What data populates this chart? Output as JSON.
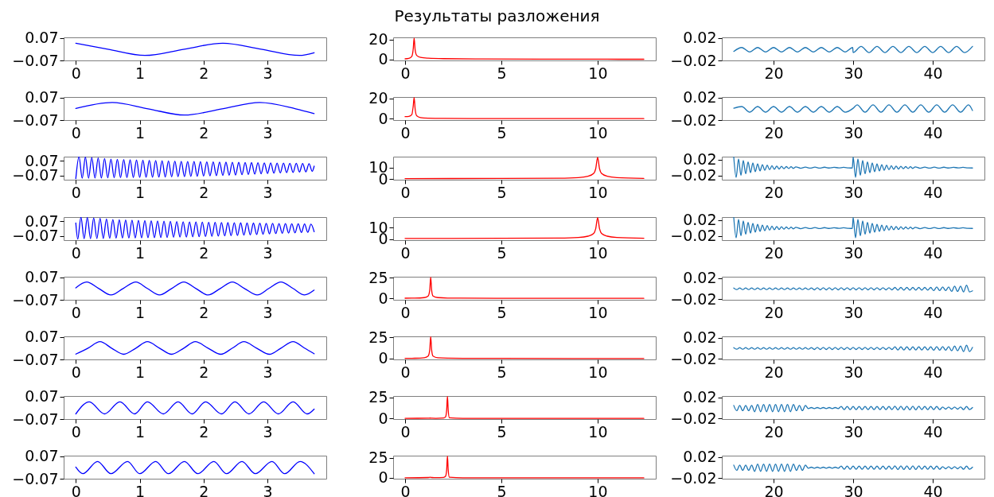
{
  "chart_data": [
    {
      "type": "line",
      "x": [
        0,
        0.5,
        1.08,
        1.7,
        2.3,
        2.9,
        3.5,
        3.73
      ],
      "series": [
        {
          "color": "#0000ff",
          "values": [
            0.037,
            0,
            -0.039,
            0,
            0.037,
            0,
            -0.039,
            -0.022
          ]
        }
      ],
      "xlim": [
        -0.19,
        3.92
      ],
      "ylim": [
        -0.07,
        0.073
      ],
      "xticks": [
        0,
        1,
        2,
        3
      ],
      "yticks": [
        -0.07,
        0.07
      ]
    },
    {
      "type": "line",
      "title": "Результаты разложения",
      "x": [
        0,
        0.2,
        0.35,
        0.42,
        0.47,
        0.52,
        0.6,
        0.8,
        1.2,
        2,
        4,
        8,
        12.4
      ],
      "series": [
        {
          "color": "#ff0000",
          "values": [
            0.5,
            1,
            3,
            10,
            21.4,
            10,
            4,
            2,
            1.2,
            0.7,
            0.4,
            0.2,
            0.1
          ]
        }
      ],
      "xlim": [
        -0.62,
        13.02
      ],
      "ylim": [
        -1.1,
        22.2
      ],
      "xticks": [
        0,
        5,
        10
      ],
      "yticks": [
        0,
        20
      ]
    },
    {
      "type": "line",
      "x": [
        15,
        16,
        17,
        18,
        19,
        20,
        21,
        22,
        23,
        24,
        25,
        26,
        27,
        28,
        29,
        29.95,
        30,
        31,
        32,
        33,
        34,
        35,
        36,
        37,
        38,
        39,
        40,
        41,
        42,
        43,
        44,
        45
      ],
      "series": [
        {
          "color": "#1f77b4",
          "values": [
            -0.004,
            0.003,
            -0.005,
            0.003,
            -0.005,
            0.003,
            -0.005,
            0.003,
            -0.005,
            0.003,
            -0.005,
            0.003,
            -0.005,
            0.003,
            -0.005,
            0.003,
            -0.006,
            0.005,
            -0.006,
            0.005,
            -0.006,
            0.005,
            -0.006,
            0.005,
            -0.006,
            0.005,
            -0.006,
            0.005,
            -0.006,
            0.005,
            -0.006,
            0.005
          ]
        }
      ],
      "xlim": [
        13.5,
        46.5
      ],
      "ylim": [
        -0.02,
        0.021
      ],
      "xticks": [
        20,
        30,
        40
      ],
      "yticks": [
        -0.02,
        0.02
      ]
    },
    {
      "type": "line",
      "x": [
        0,
        0.57,
        1.13,
        1.7,
        2.29,
        2.88,
        3.44,
        3.73
      ],
      "series": [
        {
          "color": "#0000ff",
          "values": [
            0.002,
            0.039,
            0,
            -0.039,
            0,
            0.039,
            0,
            -0.03
          ]
        }
      ],
      "xlim": [
        -0.19,
        3.92
      ],
      "ylim": [
        -0.07,
        0.073
      ],
      "xticks": [
        0,
        1,
        2,
        3
      ],
      "yticks": [
        -0.07,
        0.07
      ]
    },
    {
      "type": "line",
      "x": [
        0,
        0.2,
        0.35,
        0.42,
        0.47,
        0.52,
        0.6,
        0.8,
        1.2,
        2,
        4,
        8,
        12.4
      ],
      "series": [
        {
          "color": "#ff0000",
          "values": [
            2.1,
            2.3,
            4,
            12,
            20.8,
            10,
            3,
            1.2,
            0.6,
            0.3,
            0.2,
            0.1,
            0.1
          ]
        }
      ],
      "xlim": [
        -0.62,
        13.02
      ],
      "ylim": [
        -1.3,
        21.3
      ],
      "xticks": [
        0,
        5,
        10
      ],
      "yticks": [
        0,
        20
      ]
    },
    {
      "type": "line",
      "x": [
        15,
        16,
        17,
        18,
        19,
        20,
        21,
        22,
        23,
        24,
        25,
        26,
        27,
        28,
        29,
        30,
        30.5,
        31.5,
        32.5,
        33.5,
        34.5,
        35.5,
        36.5,
        37.5,
        38.5,
        39.5,
        40.5,
        41.5,
        42.5,
        43.5,
        44.5,
        45
      ],
      "series": [
        {
          "color": "#1f77b4",
          "values": [
            0.001,
            0.004,
            -0.006,
            0.004,
            -0.006,
            0.004,
            -0.006,
            0.004,
            -0.006,
            0.004,
            -0.006,
            0.004,
            -0.006,
            0.004,
            -0.006,
            0.001,
            0.007,
            -0.006,
            0.007,
            -0.006,
            0.007,
            -0.006,
            0.007,
            -0.006,
            0.007,
            -0.006,
            0.007,
            -0.006,
            0.007,
            -0.006,
            0.007,
            -0.003
          ]
        }
      ],
      "xlim": [
        13.5,
        46.5
      ],
      "ylim": [
        -0.02,
        0.021
      ],
      "xticks": [
        20,
        30,
        40
      ],
      "yticks": [
        -0.02,
        0.02
      ]
    },
    {
      "type": "line",
      "x": [
        0,
        0.05,
        0.1,
        0.15,
        0.2,
        0.25,
        0.3,
        0.35,
        0.4,
        0.45,
        0.5,
        0.55,
        0.6,
        0.65,
        0.7,
        0.75,
        0.8,
        0.85,
        0.9,
        0.95,
        1,
        1.05,
        1.1,
        1.15,
        1.2,
        1.25,
        1.3,
        1.35,
        1.4,
        1.45,
        1.5,
        1.55,
        1.6,
        1.65,
        1.7,
        1.75,
        1.8,
        1.85,
        1.9,
        1.95,
        2,
        2.05,
        2.1,
        2.15,
        2.2,
        2.25,
        2.3,
        2.35,
        2.4,
        2.45,
        2.5,
        2.55,
        2.6,
        2.65,
        2.7,
        2.75,
        2.8,
        2.85,
        2.9,
        2.95,
        3,
        3.05,
        3.1,
        3.15,
        3.2,
        3.25,
        3.3,
        3.35,
        3.4,
        3.45,
        3.5,
        3.55,
        3.6,
        3.65,
        3.7,
        3.73
      ],
      "series": [
        {
          "color": "#0000ff",
          "values": [
            -0.1,
            0.11,
            -0.096,
            0.106,
            -0.095,
            0.102,
            -0.094,
            0.098,
            -0.093,
            0.092,
            -0.092,
            0.087,
            -0.091,
            0.085,
            -0.09,
            0.083,
            -0.09,
            0.081,
            -0.089,
            0.079,
            -0.088,
            0.077,
            -0.087,
            0.075,
            -0.086,
            0.073,
            -0.085,
            0.071,
            -0.084,
            0.069,
            -0.082,
            0.067,
            -0.081,
            0.066,
            -0.08,
            0.064,
            -0.078,
            0.063,
            -0.077,
            0.061,
            -0.075,
            0.06,
            -0.073,
            0.059,
            -0.071,
            0.058,
            -0.069,
            0.057,
            -0.067,
            0.056,
            -0.065,
            0.055,
            -0.062,
            0.054,
            -0.059,
            0.053,
            -0.056,
            0.052,
            -0.053,
            0.051,
            -0.05,
            0.05,
            -0.047,
            0.049,
            -0.045,
            0.048,
            -0.042,
            0.047,
            -0.04,
            0.046,
            -0.037,
            0.045,
            -0.035,
            0.043,
            -0.03,
            0.019
          ]
        }
      ],
      "xlim": [
        -0.19,
        3.92
      ],
      "ylim": [
        -0.11,
        0.11
      ],
      "xticks": [
        0,
        1,
        2,
        3
      ],
      "yticks": [
        -0.07,
        0.07
      ]
    },
    {
      "type": "line",
      "x": [
        0,
        5,
        8,
        9,
        9.5,
        9.8,
        9.9,
        10,
        10.1,
        10.2,
        10.5,
        11,
        12.4
      ],
      "series": [
        {
          "color": "#ff0000",
          "values": [
            0.5,
            0.6,
            0.8,
            1.3,
            2.5,
            5,
            9,
            18.8,
            9,
            5,
            2.5,
            1.3,
            0.6
          ]
        }
      ],
      "xlim": [
        -0.62,
        13.02
      ],
      "ylim": [
        -0.5,
        19.5
      ],
      "xticks": [
        0,
        5,
        10
      ],
      "yticks": [
        0,
        10
      ]
    },
    {
      "type": "line",
      "x": [
        15,
        15.3,
        15.6,
        15.9,
        16.2,
        16.5,
        16.8,
        17.1,
        17.4,
        17.7,
        18,
        18.3,
        18.6,
        18.9,
        19.2,
        19.5,
        19.8,
        20.1,
        20.4,
        20.7,
        21,
        21.3,
        21.6,
        21.9,
        22.2,
        22.5,
        22.8,
        23.4,
        24,
        24.6,
        25.2,
        25.8,
        26.4,
        27,
        27.6,
        28.2,
        28.8,
        29.4,
        29.9,
        30,
        30.3,
        30.6,
        30.9,
        31.2,
        31.5,
        31.8,
        32.1,
        32.4,
        32.7,
        33,
        33.3,
        33.6,
        33.9,
        34.2,
        34.5,
        34.8,
        35.1,
        35.4,
        35.7,
        36,
        36.3,
        36.6,
        36.9,
        37.2,
        37.5,
        37.8,
        38.4,
        39,
        39.6,
        40.2,
        40.8,
        41.4,
        42,
        42.6,
        43.2,
        43.8,
        44.4,
        45
      ],
      "series": [
        {
          "color": "#1f77b4",
          "values": [
            0.027,
            -0.025,
            0.022,
            -0.02,
            0.018,
            -0.016,
            0.0145,
            -0.013,
            0.0118,
            -0.0106,
            0.0095,
            -0.0085,
            0.0076,
            -0.0068,
            0.0061,
            -0.0055,
            0.0049,
            -0.0044,
            0.004,
            -0.0036,
            0.0032,
            -0.0029,
            0.0026,
            -0.0024,
            0.0022,
            -0.002,
            0.0018,
            -0.0016,
            0.0014,
            -0.0014,
            0.0012,
            -0.0012,
            0.001,
            -0.001,
            0.0008,
            -0.0008,
            0.0006,
            -0.0006,
            -0.001,
            0.027,
            -0.025,
            0.022,
            -0.02,
            0.018,
            -0.016,
            0.0145,
            -0.013,
            0.0118,
            -0.0106,
            0.0095,
            -0.0085,
            0.0076,
            -0.0068,
            0.0061,
            -0.0055,
            0.0049,
            -0.0044,
            0.004,
            -0.0036,
            0.0032,
            -0.0029,
            0.0026,
            -0.0024,
            0.0022,
            -0.002,
            0.0018,
            -0.0016,
            0.0014,
            -0.0014,
            0.0012,
            -0.0012,
            0.001,
            -0.001,
            0.0008,
            -0.0008,
            0.0006,
            -0.0006,
            -0.001
          ]
        }
      ],
      "xlim": [
        13.5,
        46.5
      ],
      "ylim": [
        -0.031,
        0.028
      ],
      "xticks": [
        20,
        30,
        40
      ],
      "yticks": [
        -0.02,
        0.02
      ]
    },
    {
      "type": "line",
      "x": [
        0,
        0.03,
        0.08,
        0.13,
        0.18,
        0.23,
        0.28,
        0.33,
        0.38,
        0.43,
        0.48,
        0.53,
        0.58,
        0.63,
        0.68,
        0.73,
        0.78,
        0.83,
        0.88,
        0.93,
        0.98,
        1.03,
        1.08,
        1.13,
        1.18,
        1.23,
        1.28,
        1.33,
        1.38,
        1.43,
        1.48,
        1.53,
        1.58,
        1.63,
        1.68,
        1.73,
        1.78,
        1.83,
        1.88,
        1.93,
        1.98,
        2.03,
        2.08,
        2.13,
        2.18,
        2.23,
        2.28,
        2.33,
        2.38,
        2.43,
        2.48,
        2.53,
        2.58,
        2.63,
        2.68,
        2.73,
        2.78,
        2.83,
        2.88,
        2.93,
        2.98,
        3.03,
        3.08,
        3.13,
        3.18,
        3.23,
        3.28,
        3.33,
        3.38,
        3.43,
        3.48,
        3.53,
        3.58,
        3.63,
        3.68,
        3.73
      ],
      "series": [
        {
          "color": "#0000ff",
          "values": [
            0.054,
            -0.1,
            0.11,
            -0.096,
            0.106,
            -0.095,
            0.102,
            -0.094,
            0.098,
            -0.093,
            0.092,
            -0.092,
            0.087,
            -0.091,
            0.085,
            -0.09,
            0.083,
            -0.09,
            0.081,
            -0.089,
            0.079,
            -0.088,
            0.077,
            -0.087,
            0.075,
            -0.086,
            0.073,
            -0.085,
            0.071,
            -0.084,
            0.069,
            -0.082,
            0.067,
            -0.081,
            0.066,
            -0.08,
            0.064,
            -0.078,
            0.063,
            -0.077,
            0.061,
            -0.075,
            0.06,
            -0.073,
            0.059,
            -0.071,
            0.058,
            -0.069,
            0.057,
            -0.067,
            0.056,
            -0.065,
            0.055,
            -0.062,
            0.054,
            -0.059,
            0.053,
            -0.056,
            0.052,
            -0.053,
            0.051,
            -0.05,
            0.05,
            -0.047,
            0.049,
            -0.045,
            0.048,
            -0.042,
            0.047,
            -0.04,
            0.046,
            -0.037,
            0.045,
            -0.035,
            0.043,
            -0.03
          ]
        }
      ],
      "xlim": [
        -0.19,
        3.92
      ],
      "ylim": [
        -0.11,
        0.11
      ],
      "xticks": [
        0,
        1,
        2,
        3
      ],
      "yticks": [
        -0.07,
        0.07
      ]
    },
    {
      "type": "line",
      "x": [
        0,
        5,
        8,
        9,
        9.5,
        9.8,
        9.9,
        10,
        10.1,
        10.2,
        10.5,
        11,
        12.4
      ],
      "series": [
        {
          "color": "#ff0000",
          "values": [
            0.5,
            0.6,
            0.8,
            1.3,
            2.5,
            5,
            9,
            18.8,
            9,
            5,
            2.5,
            1.3,
            0.6
          ]
        }
      ],
      "xlim": [
        -0.62,
        13.02
      ],
      "ylim": [
        -1,
        19.3
      ],
      "xticks": [
        0,
        5,
        10
      ],
      "yticks": [
        0,
        10
      ]
    },
    {
      "type": "line",
      "x": [
        15,
        15.3,
        15.6,
        15.9,
        16.2,
        16.5,
        16.8,
        17.1,
        17.4,
        17.7,
        18,
        18.3,
        18.6,
        18.9,
        19.2,
        19.5,
        19.8,
        20.1,
        20.4,
        20.7,
        21,
        21.3,
        21.6,
        21.9,
        22.2,
        22.5,
        22.8,
        23.4,
        24,
        24.6,
        25.2,
        25.8,
        26.4,
        27,
        27.6,
        28.2,
        28.8,
        29.4,
        29.9,
        30,
        30.3,
        30.6,
        30.9,
        31.2,
        31.5,
        31.8,
        32.1,
        32.4,
        32.7,
        33,
        33.3,
        33.6,
        33.9,
        34.2,
        34.5,
        34.8,
        35.1,
        35.4,
        35.7,
        36,
        36.3,
        36.6,
        36.9,
        37.2,
        37.5,
        37.8,
        38.4,
        39,
        39.6,
        40.2,
        40.8,
        41.4,
        42,
        42.6,
        43.2,
        43.8,
        44.4,
        45
      ],
      "series": [
        {
          "color": "#1f77b4",
          "values": [
            0.027,
            -0.025,
            0.022,
            -0.02,
            0.018,
            -0.016,
            0.0145,
            -0.013,
            0.0118,
            -0.0106,
            0.0095,
            -0.0085,
            0.0076,
            -0.0068,
            0.0061,
            -0.0055,
            0.0049,
            -0.0044,
            0.004,
            -0.0036,
            0.0032,
            -0.0029,
            0.0026,
            -0.0024,
            0.0022,
            -0.002,
            0.0018,
            -0.0016,
            0.0014,
            -0.0014,
            0.0012,
            -0.0012,
            0.001,
            -0.001,
            0.0008,
            -0.0008,
            0.0006,
            -0.0006,
            -0.001,
            0.027,
            -0.025,
            0.022,
            -0.02,
            0.018,
            -0.016,
            0.0145,
            -0.013,
            0.0118,
            -0.0106,
            0.0095,
            -0.0085,
            0.0076,
            -0.0068,
            0.0061,
            -0.0055,
            0.0049,
            -0.0044,
            0.004,
            -0.0036,
            0.0032,
            -0.0029,
            0.0026,
            -0.0024,
            0.0022,
            -0.002,
            0.0018,
            -0.0016,
            0.0014,
            -0.0014,
            0.0012,
            -0.0012,
            0.001,
            -0.001,
            0.0008,
            -0.0008,
            0.0006,
            -0.0006,
            -0.001
          ]
        }
      ],
      "xlim": [
        13.5,
        46.5
      ],
      "ylim": [
        -0.031,
        0.028
      ],
      "xticks": [
        20,
        30,
        40
      ],
      "yticks": [
        -0.02,
        0.02
      ]
    },
    {
      "type": "line",
      "x": [
        0,
        0.17,
        0.36,
        0.55,
        0.74,
        0.94,
        1.12,
        1.31,
        1.5,
        1.69,
        1.88,
        2.07,
        2.26,
        2.45,
        2.64,
        2.84,
        3.02,
        3.21,
        3.4,
        3.58,
        3.73
      ],
      "series": [
        {
          "color": "#0000ff",
          "values": [
            0.004,
            0.04,
            0,
            -0.04,
            0,
            0.04,
            0,
            -0.04,
            0,
            0.04,
            0,
            -0.04,
            0,
            0.04,
            0,
            -0.04,
            0,
            0.04,
            0,
            -0.04,
            -0.01
          ]
        }
      ],
      "xlim": [
        -0.19,
        3.92
      ],
      "ylim": [
        -0.07,
        0.073
      ],
      "xticks": [
        0,
        1,
        2,
        3
      ],
      "yticks": [
        -0.07,
        0.07
      ]
    },
    {
      "type": "line",
      "x": [
        0,
        0.5,
        1,
        1.2,
        1.28,
        1.33,
        1.38,
        1.45,
        1.7,
        2.2,
        5,
        12.4
      ],
      "series": [
        {
          "color": "#ff0000",
          "values": [
            0.3,
            0.4,
            1,
            3,
            10,
            25.5,
            10,
            3,
            1,
            0.5,
            0.2,
            0.1
          ]
        }
      ],
      "xlim": [
        -0.62,
        13.02
      ],
      "ylim": [
        -1.6,
        26
      ],
      "xticks": [
        0,
        5,
        10
      ],
      "yticks": [
        0,
        25
      ]
    },
    {
      "type": "line",
      "x": [
        15,
        15.375,
        15.75,
        16.125,
        16.5,
        16.875,
        17.25,
        17.625,
        18,
        18.375,
        18.75,
        19.125,
        19.5,
        19.875,
        20.25,
        20.625,
        21,
        21.375,
        21.75,
        22.125,
        22.5,
        22.875,
        23.25,
        23.625,
        24,
        24.375,
        24.75,
        25.125,
        25.5,
        25.875,
        26.25,
        26.625,
        27,
        27.375,
        27.75,
        28.125,
        28.5,
        28.875,
        29.25,
        29.625,
        30,
        30.375,
        30.75,
        31.125,
        31.5,
        31.875,
        32.25,
        32.625,
        33,
        33.375,
        33.75,
        34.125,
        34.5,
        34.875,
        35.25,
        35.625,
        36,
        36.375,
        36.75,
        37.125,
        37.5,
        37.875,
        38.25,
        38.625,
        39,
        39.375,
        39.75,
        40.125,
        40.5,
        40.875,
        41.25,
        41.625,
        42,
        42.375,
        42.75,
        43.125,
        43.5,
        43.875,
        44.25,
        44.625,
        45
      ],
      "series": [
        {
          "color": "#1f77b4",
          "values": [
            0.0015,
            -0.0015,
            0.0015,
            -0.0015,
            0.0015,
            -0.0015,
            0.0015,
            -0.0015,
            0.0015,
            -0.0015,
            0.0015,
            -0.0015,
            0.0015,
            -0.0015,
            0.0015,
            -0.0015,
            0.0015,
            -0.0015,
            0.0015,
            -0.0015,
            0.0015,
            -0.0015,
            0.0015,
            -0.0015,
            0.0015,
            -0.0015,
            0.0015,
            -0.002,
            0.002,
            -0.002,
            0.002,
            -0.002,
            0.002,
            -0.002,
            0.002,
            -0.002,
            0.002,
            -0.002,
            0.002,
            -0.002,
            0.002,
            -0.002,
            0.002,
            -0.002,
            0.002,
            -0.002,
            0.002,
            -0.002,
            0.002,
            -0.002,
            0.002,
            -0.002,
            0.002,
            -0.002,
            0.0025,
            -0.0025,
            0.0025,
            -0.0025,
            0.0025,
            -0.0025,
            0.0025,
            -0.0025,
            0.0025,
            -0.0025,
            0.0025,
            -0.0025,
            0.0025,
            -0.0035,
            0.0035,
            -0.0035,
            0.0035,
            -0.0035,
            0.0035,
            -0.005,
            0.005,
            -0.005,
            0.005,
            -0.006,
            0.007,
            -0.006,
            -0.004
          ]
        }
      ],
      "xlim": [
        13.5,
        46.5
      ],
      "ylim": [
        -0.021,
        0.023
      ],
      "xticks": [
        20,
        30,
        40
      ],
      "yticks": [
        -0.02,
        0.02
      ]
    },
    {
      "type": "line",
      "x": [
        0,
        0.19,
        0.38,
        0.56,
        0.75,
        0.94,
        1.12,
        1.31,
        1.5,
        1.69,
        1.87,
        2.07,
        2.27,
        2.45,
        2.63,
        2.83,
        3.03,
        3.21,
        3.4,
        3.58,
        3.73
      ],
      "series": [
        {
          "color": "#0000ff",
          "values": [
            -0.037,
            0,
            0.04,
            0,
            -0.038,
            0,
            0.04,
            0,
            -0.038,
            0,
            0.04,
            0,
            -0.038,
            0,
            0.04,
            0,
            -0.038,
            0,
            0.04,
            0,
            -0.035
          ]
        }
      ],
      "xlim": [
        -0.19,
        3.92
      ],
      "ylim": [
        -0.07,
        0.073
      ],
      "xticks": [
        0,
        1,
        2,
        3
      ],
      "yticks": [
        -0.07,
        0.07
      ]
    },
    {
      "type": "line",
      "x": [
        0,
        0.5,
        1,
        1.2,
        1.28,
        1.33,
        1.38,
        1.45,
        1.7,
        2.2,
        5,
        12.4
      ],
      "series": [
        {
          "color": "#ff0000",
          "values": [
            0.3,
            0.4,
            1,
            3,
            10,
            25.7,
            10,
            3,
            1,
            0.5,
            0.2,
            0.1
          ]
        }
      ],
      "xlim": [
        -0.62,
        13.02
      ],
      "ylim": [
        -1,
        26
      ],
      "xticks": [
        0,
        5,
        10
      ],
      "yticks": [
        0,
        25
      ]
    },
    {
      "type": "line",
      "x": [
        15,
        15.375,
        15.75,
        16.125,
        16.5,
        16.875,
        17.25,
        17.625,
        18,
        18.375,
        18.75,
        19.125,
        19.5,
        19.875,
        20.25,
        20.625,
        21,
        21.375,
        21.75,
        22.125,
        22.5,
        22.875,
        23.25,
        23.625,
        24,
        24.375,
        24.75,
        25.125,
        25.5,
        25.875,
        26.25,
        26.625,
        27,
        27.375,
        27.75,
        28.125,
        28.5,
        28.875,
        29.25,
        29.625,
        30,
        30.375,
        30.75,
        31.125,
        31.5,
        31.875,
        32.25,
        32.625,
        33,
        33.375,
        33.75,
        34.125,
        34.5,
        34.875,
        35.25,
        35.625,
        36,
        36.375,
        36.75,
        37.125,
        37.5,
        37.875,
        38.25,
        38.625,
        39,
        39.375,
        39.75,
        40.125,
        40.5,
        40.875,
        41.25,
        41.625,
        42,
        42.375,
        42.75,
        43.125,
        43.5,
        43.875,
        44.25,
        44.625,
        45
      ],
      "series": [
        {
          "color": "#1f77b4",
          "values": [
            0.0015,
            -0.0015,
            0.0015,
            -0.0015,
            0.0015,
            -0.0015,
            0.0015,
            -0.0015,
            0.0015,
            -0.0015,
            0.0015,
            -0.0015,
            0.0015,
            -0.0015,
            0.0015,
            -0.0015,
            0.0015,
            -0.0015,
            0.0015,
            -0.0015,
            0.0015,
            -0.0015,
            0.0015,
            -0.0015,
            0.0015,
            -0.0015,
            0.0015,
            -0.002,
            0.002,
            -0.002,
            0.002,
            -0.002,
            0.002,
            -0.002,
            0.002,
            -0.002,
            0.002,
            -0.002,
            0.002,
            -0.002,
            0.002,
            -0.002,
            0.002,
            -0.002,
            0.002,
            -0.002,
            0.002,
            -0.002,
            0.002,
            -0.002,
            0.002,
            -0.002,
            0.002,
            -0.002,
            0.003,
            -0.003,
            0.003,
            -0.003,
            0.003,
            -0.003,
            0.003,
            -0.003,
            0.003,
            -0.003,
            0.003,
            -0.003,
            0.003,
            -0.0035,
            0.0035,
            -0.0035,
            0.0035,
            -0.0035,
            0.0035,
            -0.0045,
            0.0045,
            -0.0045,
            0.0045,
            -0.006,
            0.006,
            -0.006,
            0.002
          ]
        }
      ],
      "xlim": [
        13.5,
        46.5
      ],
      "ylim": [
        -0.021,
        0.023
      ],
      "xticks": [
        20,
        30,
        40
      ],
      "yticks": [
        -0.02,
        0.02
      ]
    },
    {
      "type": "line",
      "x": [
        0,
        0.21,
        0.45,
        0.69,
        0.92,
        1.12,
        1.37,
        1.6,
        1.82,
        2.03,
        2.28,
        2.49,
        2.71,
        2.94,
        3.17,
        3.4,
        3.62,
        3.73
      ],
      "series": [
        {
          "color": "#0000ff",
          "values": [
            -0.038,
            0.037,
            -0.038,
            0.037,
            -0.038,
            0.037,
            -0.038,
            0.037,
            -0.038,
            0.037,
            -0.038,
            0.037,
            -0.038,
            0.037,
            -0.038,
            0.037,
            -0.038,
            -0.008
          ]
        }
      ],
      "xlim": [
        -0.19,
        3.92
      ],
      "ylim": [
        -0.07,
        0.073
      ],
      "xticks": [
        0,
        1,
        2,
        3
      ],
      "yticks": [
        -0.07,
        0.07
      ]
    },
    {
      "type": "line",
      "x": [
        0,
        1.2,
        1.3,
        1.4,
        1.6,
        2,
        2.1,
        2.16,
        2.2,
        2.24,
        2.3,
        3,
        12.4
      ],
      "series": [
        {
          "color": "#ff0000",
          "values": [
            0.2,
            0.3,
            0.5,
            0.3,
            0.2,
            0.6,
            1.8,
            10,
            26.5,
            10,
            0.8,
            0.2,
            0.1
          ]
        }
      ],
      "xlim": [
        -0.62,
        13.02
      ],
      "ylim": [
        -0.7,
        26.7
      ],
      "xticks": [
        0,
        5,
        10
      ],
      "yticks": [
        0,
        25
      ]
    },
    {
      "type": "line",
      "x": [
        15,
        15.375,
        15.75,
        16.125,
        16.5,
        16.875,
        17.25,
        17.625,
        18,
        18.375,
        18.75,
        19.125,
        19.5,
        19.875,
        20.25,
        20.625,
        21,
        21.375,
        21.75,
        22.125,
        22.5,
        22.875,
        23.25,
        23.625,
        24,
        24.375,
        24.75,
        25.125,
        25.5,
        25.875,
        26.25,
        26.625,
        27,
        27.375,
        27.75,
        28.125,
        28.5,
        28.875,
        29.25,
        29.625,
        30,
        30.375,
        30.75,
        31.125,
        31.5,
        31.875,
        32.25,
        32.625,
        33,
        33.375,
        33.75,
        34.125,
        34.5,
        34.875,
        35.25,
        35.625,
        36,
        36.375,
        36.75,
        37.125,
        37.5,
        37.875,
        38.25,
        38.625,
        39,
        39.375,
        39.75,
        40.125,
        40.5,
        40.875,
        41.25,
        41.625,
        42,
        42.375,
        42.75,
        43.125,
        43.5,
        43.875,
        44.25,
        44.625,
        45
      ],
      "series": [
        {
          "color": "#1f77b4",
          "values": [
            0.005,
            -0.005,
            0.005,
            -0.005,
            0.005,
            -0.005,
            0.005,
            -0.007,
            0.007,
            -0.007,
            0.007,
            -0.007,
            0.007,
            -0.007,
            0.007,
            -0.007,
            0.007,
            -0.007,
            0.007,
            -0.007,
            0.007,
            -0.005,
            0.005,
            -0.005,
            0.005,
            -0.001,
            0.001,
            -0.001,
            0.001,
            -0.001,
            0.001,
            -0.001,
            0.001,
            -0.001,
            0.001,
            -0.001,
            0.003,
            -0.003,
            0.003,
            -0.003,
            0.003,
            -0.003,
            0.003,
            -0.003,
            0.003,
            -0.003,
            0.003,
            -0.003,
            0.003,
            -0.003,
            0.003,
            -0.003,
            0.003,
            -0.003,
            0.0035,
            -0.0035,
            0.0035,
            -0.0035,
            0.0035,
            -0.0035,
            0.0035,
            -0.0035,
            0.0035,
            -0.003,
            0.003,
            -0.003,
            0.003,
            -0.003,
            0.003,
            -0.003,
            0.002,
            -0.002,
            0.002,
            -0.002,
            0.002,
            -0.002,
            0.002,
            -0.003,
            0.003,
            -0.003,
            0.001
          ]
        }
      ],
      "xlim": [
        13.5,
        46.5
      ],
      "ylim": [
        -0.021,
        0.023
      ],
      "xticks": [
        20,
        30,
        40
      ],
      "yticks": [
        -0.02,
        0.02
      ]
    },
    {
      "type": "line",
      "x": [
        0,
        0.11,
        0.34,
        0.55,
        0.81,
        1,
        1.25,
        1.45,
        1.7,
        1.91,
        2.16,
        2.36,
        2.6,
        2.81,
        3.07,
        3.27,
        3.51,
        3.73
      ],
      "series": [
        {
          "color": "#0000ff",
          "values": [
            0.002,
            -0.039,
            0.037,
            -0.039,
            0.037,
            -0.039,
            0.037,
            -0.039,
            0.037,
            -0.039,
            0.037,
            -0.039,
            0.037,
            -0.039,
            0.037,
            -0.039,
            0.037,
            -0.039
          ]
        }
      ],
      "xlim": [
        -0.19,
        3.92
      ],
      "ylim": [
        -0.07,
        0.073
      ],
      "xticks": [
        0,
        1,
        2,
        3
      ],
      "yticks": [
        -0.07,
        0.07
      ]
    },
    {
      "type": "line",
      "x": [
        0,
        1.2,
        1.3,
        1.4,
        1.6,
        2,
        2.1,
        2.16,
        2.2,
        2.24,
        2.3,
        3,
        12.4
      ],
      "series": [
        {
          "color": "#ff0000",
          "values": [
            0.2,
            0.5,
            0.8,
            0.5,
            0.3,
            0.7,
            2,
            10,
            27.3,
            10,
            0.8,
            0.2,
            0.1
          ]
        }
      ],
      "xlim": [
        -0.62,
        13.02
      ],
      "ylim": [
        -1,
        27.7
      ],
      "xticks": [
        0,
        5,
        10
      ],
      "yticks": [
        0,
        25
      ]
    },
    {
      "type": "line",
      "x": [
        15,
        15.375,
        15.75,
        16.125,
        16.5,
        16.875,
        17.25,
        17.625,
        18,
        18.375,
        18.75,
        19.125,
        19.5,
        19.875,
        20.25,
        20.625,
        21,
        21.375,
        21.75,
        22.125,
        22.5,
        22.875,
        23.25,
        23.625,
        24,
        24.375,
        24.75,
        25.125,
        25.5,
        25.875,
        26.25,
        26.625,
        27,
        27.375,
        27.75,
        28.125,
        28.5,
        28.875,
        29.25,
        29.625,
        30,
        30.375,
        30.75,
        31.125,
        31.5,
        31.875,
        32.25,
        32.625,
        33,
        33.375,
        33.75,
        34.125,
        34.5,
        34.875,
        35.25,
        35.625,
        36,
        36.375,
        36.75,
        37.125,
        37.5,
        37.875,
        38.25,
        38.625,
        39,
        39.375,
        39.75,
        40.125,
        40.5,
        40.875,
        41.25,
        41.625,
        42,
        42.375,
        42.75,
        43.125,
        43.5,
        43.875,
        44.25,
        44.625,
        45
      ],
      "series": [
        {
          "color": "#1f77b4",
          "values": [
            0.005,
            -0.005,
            0.005,
            -0.005,
            0.005,
            -0.005,
            0.005,
            -0.007,
            0.007,
            -0.007,
            0.007,
            -0.007,
            0.007,
            -0.007,
            0.007,
            -0.007,
            0.007,
            -0.007,
            0.007,
            -0.007,
            0.007,
            -0.005,
            0.005,
            -0.005,
            0.005,
            -0.001,
            0.001,
            -0.001,
            0.001,
            -0.001,
            0.001,
            -0.001,
            0.001,
            -0.001,
            0.001,
            -0.001,
            0.003,
            -0.003,
            0.003,
            -0.003,
            0.003,
            -0.003,
            0.003,
            -0.003,
            0.003,
            -0.003,
            0.003,
            -0.003,
            0.003,
            -0.003,
            0.003,
            -0.003,
            0.003,
            -0.003,
            0.0035,
            -0.0035,
            0.0035,
            -0.0035,
            0.0035,
            -0.0035,
            0.0035,
            -0.0035,
            0.0035,
            -0.003,
            0.003,
            -0.003,
            0.003,
            -0.003,
            0.003,
            -0.003,
            0.002,
            -0.002,
            0.002,
            -0.002,
            0.002,
            -0.002,
            0.002,
            -0.003,
            0.003,
            -0.003,
            0.001
          ]
        }
      ],
      "xlim": [
        13.5,
        46.5
      ],
      "ylim": [
        -0.021,
        0.023
      ],
      "xticks": [
        20,
        30,
        40
      ],
      "yticks": [
        -0.02,
        0.02
      ]
    }
  ]
}
